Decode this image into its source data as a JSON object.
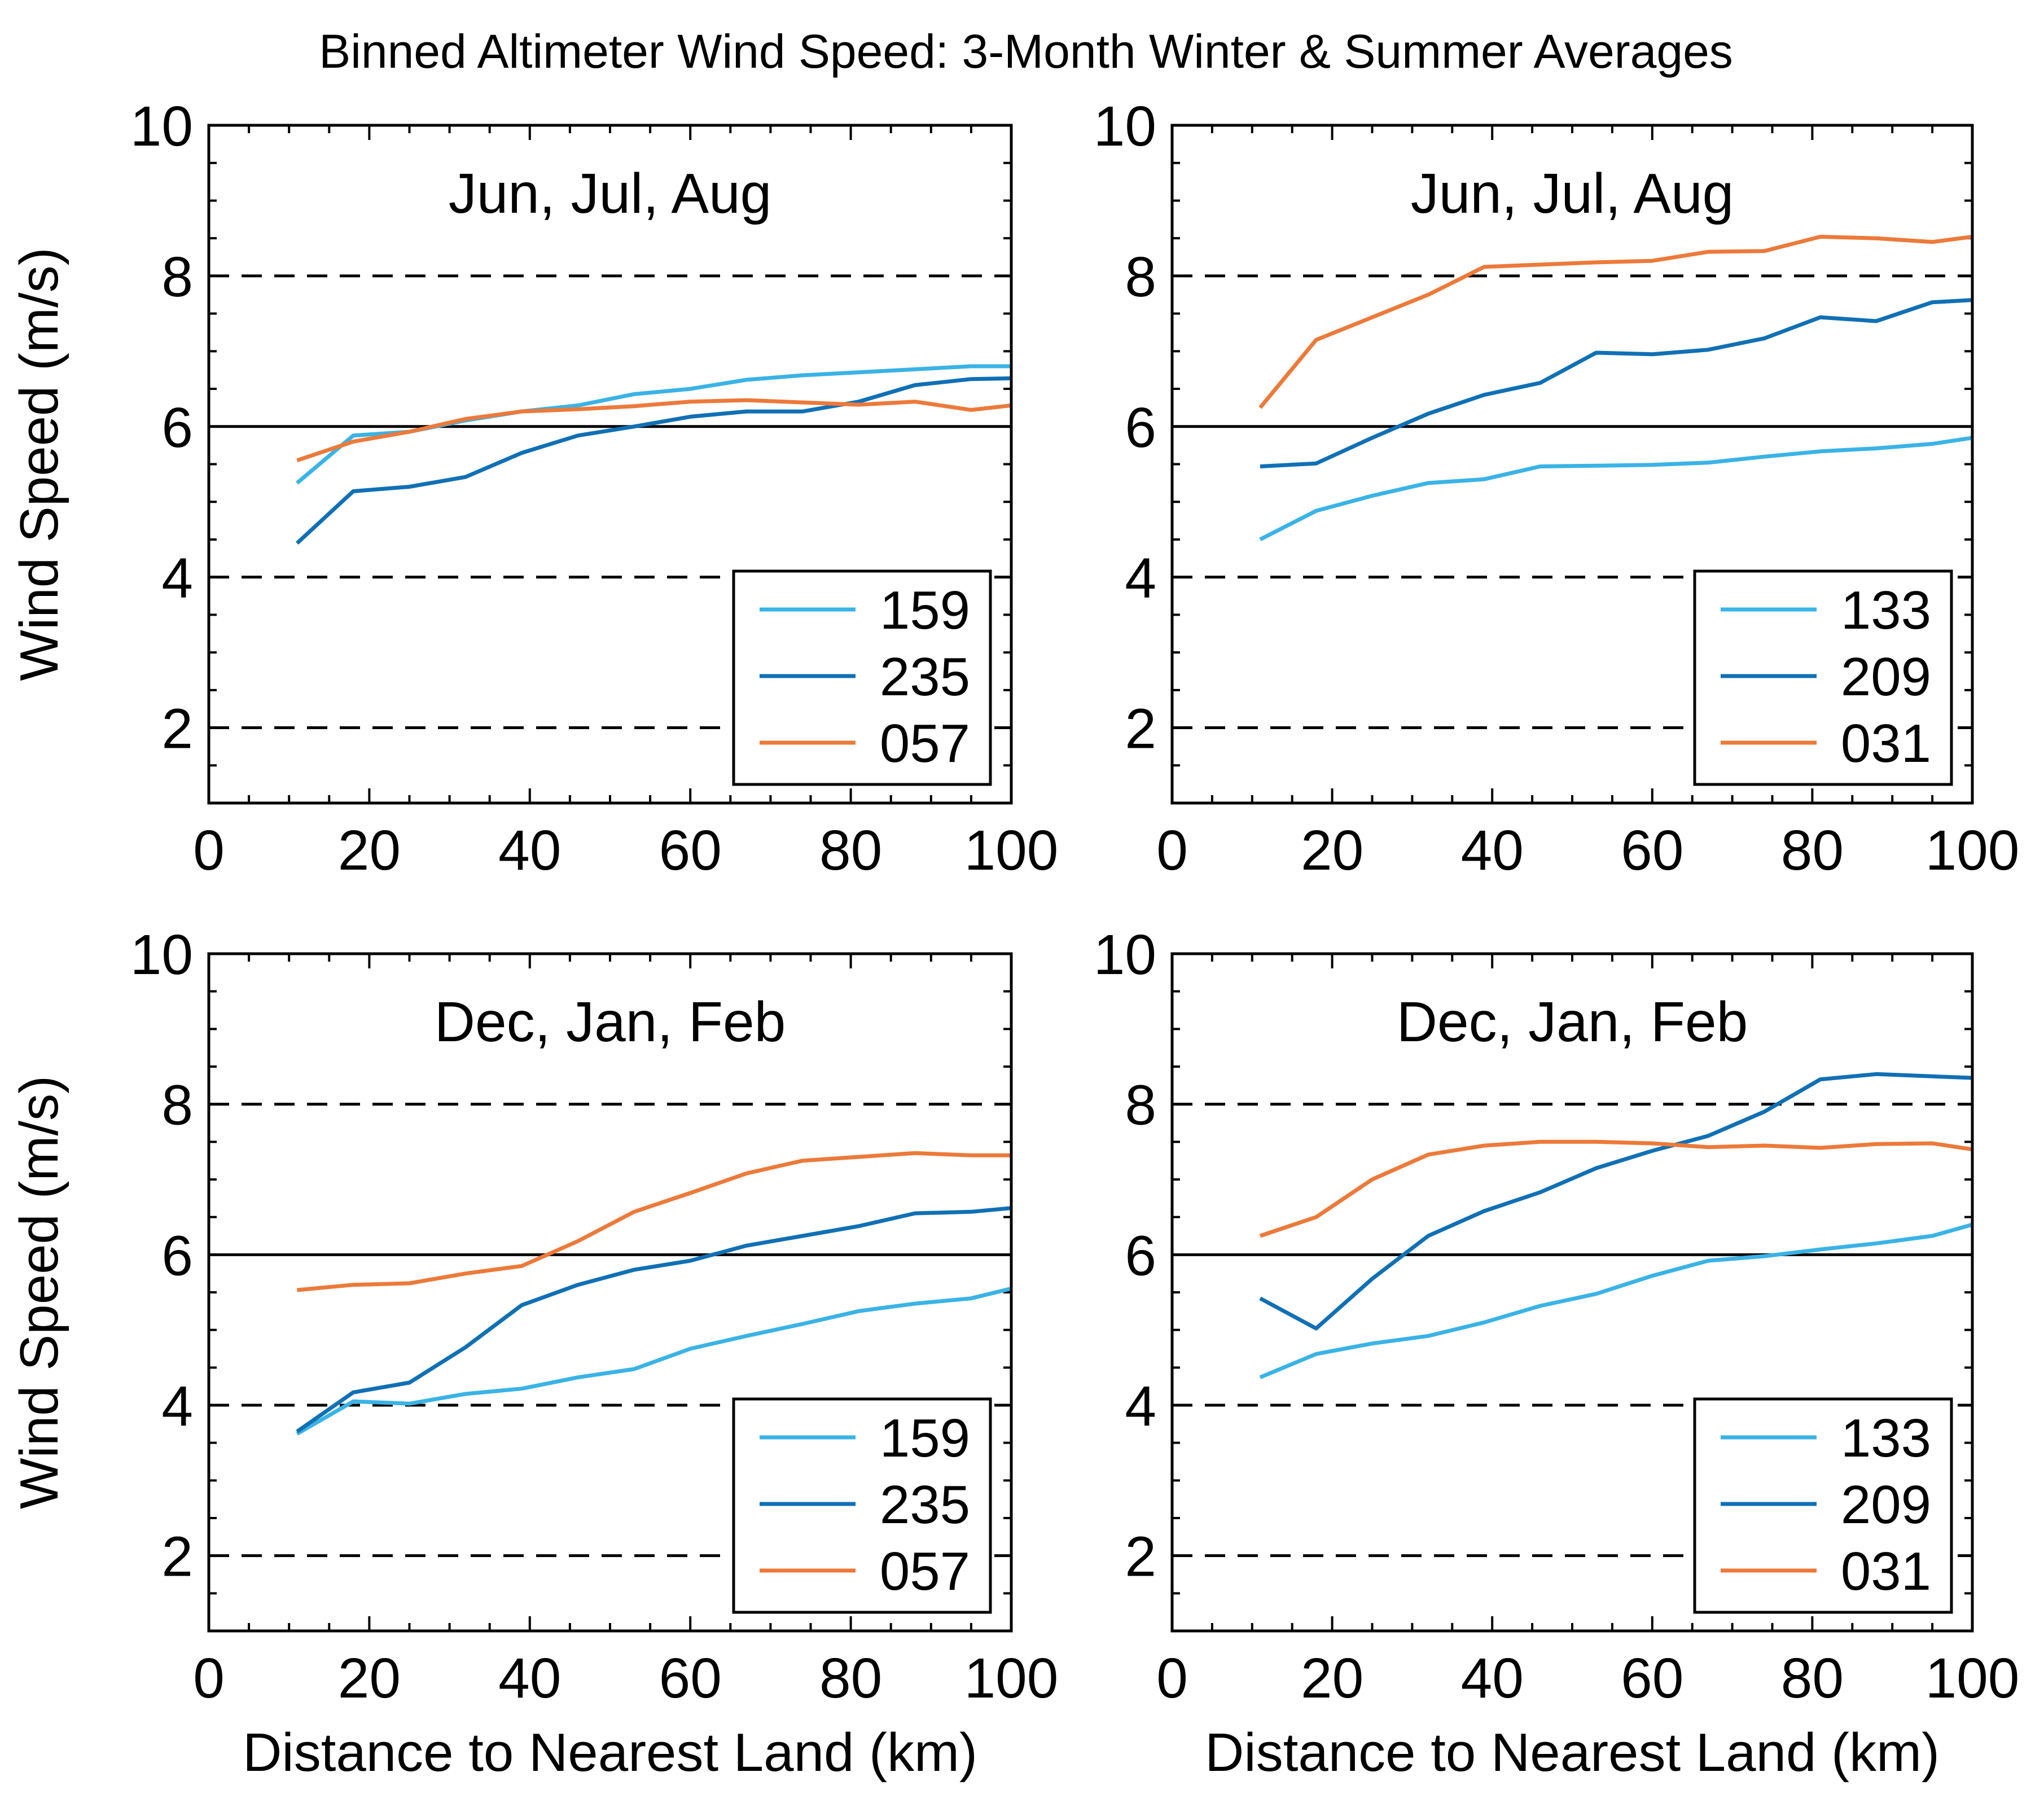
{
  "figure_title": "Binned Altimeter Wind Speed: 3-Month Winter & Summer Averages",
  "colors": {
    "light_blue": "#3ab3e6",
    "dark_blue": "#1070b5",
    "orange": "#ec7a3a",
    "axes": "#000000"
  },
  "chart_data": [
    {
      "type": "line",
      "panel": "top-left",
      "title": "Jun, Jul, Aug",
      "xlabel": "",
      "ylabel": "Wind Speed (m/s)",
      "xlim": [
        0,
        100
      ],
      "ylim": [
        1,
        10
      ],
      "x_ticks": [
        0,
        20,
        40,
        60,
        80,
        100
      ],
      "y_ticks": [
        2,
        4,
        6,
        8,
        10
      ],
      "reference_lines": [
        {
          "y": 2,
          "style": "dashed"
        },
        {
          "y": 4,
          "style": "dashed"
        },
        {
          "y": 6,
          "style": "solid"
        },
        {
          "y": 8,
          "style": "dashed"
        }
      ],
      "legend_position": "bottom-right",
      "x": [
        11,
        18,
        25,
        32,
        39,
        46,
        53,
        60,
        67,
        74,
        81,
        88,
        95,
        100
      ],
      "series": [
        {
          "name": "159",
          "color": "#3ab3e6",
          "values": [
            5.25,
            5.88,
            5.93,
            6.08,
            6.2,
            6.28,
            6.43,
            6.5,
            6.62,
            6.68,
            6.72,
            6.76,
            6.8,
            6.8
          ]
        },
        {
          "name": "235",
          "color": "#1070b5",
          "values": [
            4.45,
            5.14,
            5.2,
            5.33,
            5.65,
            5.88,
            6.0,
            6.13,
            6.2,
            6.2,
            6.33,
            6.55,
            6.63,
            6.64
          ]
        },
        {
          "name": "057",
          "color": "#ec7a3a",
          "values": [
            5.55,
            5.8,
            5.93,
            6.1,
            6.2,
            6.23,
            6.27,
            6.33,
            6.35,
            6.32,
            6.29,
            6.33,
            6.22,
            6.28
          ]
        }
      ]
    },
    {
      "type": "line",
      "panel": "top-right",
      "title": "Jun, Jul, Aug",
      "xlabel": "",
      "ylabel": "",
      "xlim": [
        0,
        100
      ],
      "ylim": [
        1,
        10
      ],
      "x_ticks": [
        0,
        20,
        40,
        60,
        80,
        100
      ],
      "y_ticks": [
        2,
        4,
        6,
        8,
        10
      ],
      "reference_lines": [
        {
          "y": 2,
          "style": "dashed"
        },
        {
          "y": 4,
          "style": "dashed"
        },
        {
          "y": 6,
          "style": "solid"
        },
        {
          "y": 8,
          "style": "dashed"
        }
      ],
      "legend_position": "bottom-right",
      "x": [
        11,
        18,
        25,
        32,
        39,
        46,
        53,
        60,
        67,
        74,
        81,
        88,
        95,
        100
      ],
      "series": [
        {
          "name": "133",
          "color": "#3ab3e6",
          "values": [
            4.5,
            4.88,
            5.08,
            5.25,
            5.3,
            5.47,
            5.48,
            5.49,
            5.52,
            5.6,
            5.67,
            5.71,
            5.77,
            5.85
          ]
        },
        {
          "name": "209",
          "color": "#1070b5",
          "values": [
            5.47,
            5.51,
            5.85,
            6.17,
            6.42,
            6.58,
            6.98,
            6.96,
            7.02,
            7.17,
            7.45,
            7.4,
            7.65,
            7.68
          ]
        },
        {
          "name": "031",
          "color": "#ec7a3a",
          "values": [
            6.25,
            7.15,
            7.45,
            7.75,
            8.12,
            8.15,
            8.18,
            8.2,
            8.32,
            8.33,
            8.52,
            8.5,
            8.45,
            8.52
          ]
        }
      ]
    },
    {
      "type": "line",
      "panel": "bottom-left",
      "title": "Dec, Jan, Feb",
      "xlabel": "Distance to Nearest Land (km)",
      "ylabel": "Wind Speed (m/s)",
      "xlim": [
        0,
        100
      ],
      "ylim": [
        1,
        10
      ],
      "x_ticks": [
        0,
        20,
        40,
        60,
        80,
        100
      ],
      "y_ticks": [
        2,
        4,
        6,
        8,
        10
      ],
      "reference_lines": [
        {
          "y": 2,
          "style": "dashed"
        },
        {
          "y": 4,
          "style": "dashed"
        },
        {
          "y": 6,
          "style": "solid"
        },
        {
          "y": 8,
          "style": "dashed"
        }
      ],
      "legend_position": "bottom-right",
      "x": [
        11,
        18,
        25,
        32,
        39,
        46,
        53,
        60,
        67,
        74,
        81,
        88,
        95,
        100
      ],
      "series": [
        {
          "name": "159",
          "color": "#3ab3e6",
          "values": [
            3.62,
            4.05,
            4.02,
            4.15,
            4.22,
            4.37,
            4.48,
            4.75,
            4.92,
            5.08,
            5.25,
            5.35,
            5.42,
            5.55
          ]
        },
        {
          "name": "235",
          "color": "#1070b5",
          "values": [
            3.65,
            4.17,
            4.3,
            4.77,
            5.33,
            5.6,
            5.8,
            5.92,
            6.12,
            6.25,
            6.38,
            6.55,
            6.57,
            6.62
          ]
        },
        {
          "name": "057",
          "color": "#ec7a3a",
          "values": [
            5.53,
            5.6,
            5.62,
            5.75,
            5.85,
            6.18,
            6.57,
            6.82,
            7.08,
            7.25,
            7.3,
            7.35,
            7.32,
            7.32
          ]
        }
      ]
    },
    {
      "type": "line",
      "panel": "bottom-right",
      "title": "Dec, Jan, Feb",
      "xlabel": "Distance to Nearest Land (km)",
      "ylabel": "",
      "xlim": [
        0,
        100
      ],
      "ylim": [
        1,
        10
      ],
      "x_ticks": [
        0,
        20,
        40,
        60,
        80,
        100
      ],
      "y_ticks": [
        2,
        4,
        6,
        8,
        10
      ],
      "reference_lines": [
        {
          "y": 2,
          "style": "dashed"
        },
        {
          "y": 4,
          "style": "dashed"
        },
        {
          "y": 6,
          "style": "solid"
        },
        {
          "y": 8,
          "style": "dashed"
        }
      ],
      "legend_position": "bottom-right",
      "x": [
        11,
        18,
        25,
        32,
        39,
        46,
        53,
        60,
        67,
        74,
        81,
        88,
        95,
        100
      ],
      "series": [
        {
          "name": "133",
          "color": "#3ab3e6",
          "values": [
            4.37,
            4.68,
            4.82,
            4.92,
            5.1,
            5.32,
            5.48,
            5.72,
            5.92,
            5.98,
            6.07,
            6.15,
            6.25,
            6.4
          ]
        },
        {
          "name": "209",
          "color": "#1070b5",
          "values": [
            5.42,
            5.02,
            5.68,
            6.25,
            6.58,
            6.83,
            7.15,
            7.38,
            7.58,
            7.9,
            8.33,
            8.4,
            8.37,
            8.35
          ]
        },
        {
          "name": "031",
          "color": "#ec7a3a",
          "values": [
            6.25,
            6.5,
            7.0,
            7.33,
            7.45,
            7.5,
            7.5,
            7.48,
            7.43,
            7.45,
            7.42,
            7.47,
            7.48,
            7.4
          ]
        }
      ]
    }
  ]
}
